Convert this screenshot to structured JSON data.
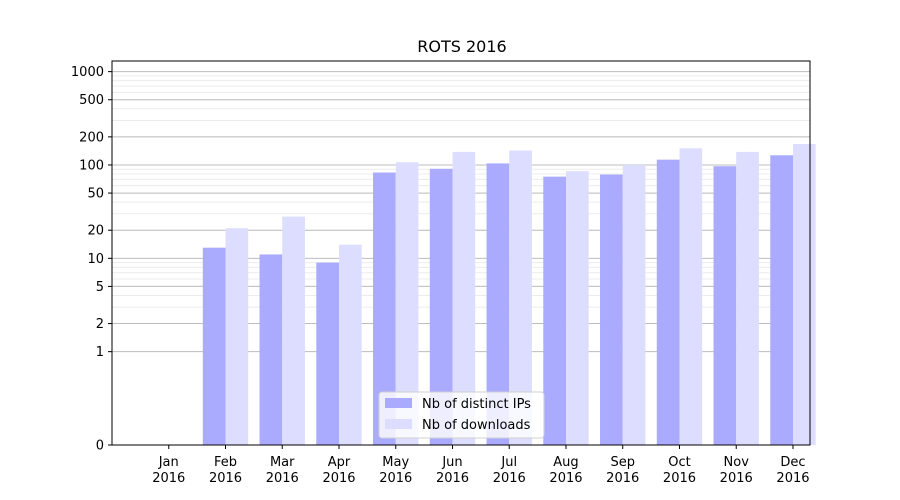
{
  "chart_data": {
    "type": "bar",
    "title": "ROTS 2016",
    "xlabel": "",
    "ylabel": "",
    "y_scale": "symlog",
    "ylim": [
      0,
      1300
    ],
    "y_ticks": [
      {
        "value": 0,
        "label": "0"
      },
      {
        "value": 1,
        "label": "1"
      },
      {
        "value": 2,
        "label": "2"
      },
      {
        "value": 5,
        "label": "5"
      },
      {
        "value": 10,
        "label": "10"
      },
      {
        "value": 20,
        "label": "20"
      },
      {
        "value": 50,
        "label": "50"
      },
      {
        "value": 100,
        "label": "100"
      },
      {
        "value": 200,
        "label": "200"
      },
      {
        "value": 500,
        "label": "500"
      },
      {
        "value": 1000,
        "label": "1000"
      }
    ],
    "categories": [
      {
        "month": "Jan",
        "year": "2016"
      },
      {
        "month": "Feb",
        "year": "2016"
      },
      {
        "month": "Mar",
        "year": "2016"
      },
      {
        "month": "Apr",
        "year": "2016"
      },
      {
        "month": "May",
        "year": "2016"
      },
      {
        "month": "Jun",
        "year": "2016"
      },
      {
        "month": "Jul",
        "year": "2016"
      },
      {
        "month": "Aug",
        "year": "2016"
      },
      {
        "month": "Sep",
        "year": "2016"
      },
      {
        "month": "Oct",
        "year": "2016"
      },
      {
        "month": "Nov",
        "year": "2016"
      },
      {
        "month": "Dec",
        "year": "2016"
      }
    ],
    "series": [
      {
        "name": "Nb of distinct IPs",
        "color": "#aaaaff",
        "values": [
          0,
          13,
          11,
          9,
          83,
          91,
          104,
          75,
          79,
          114,
          97,
          127
        ]
      },
      {
        "name": "Nb of downloads",
        "color": "#ddddff",
        "values": [
          0,
          21,
          28,
          14,
          107,
          138,
          143,
          86,
          100,
          151,
          138,
          168
        ]
      }
    ],
    "legend_position": "lower-center",
    "grid": "horizontal"
  }
}
